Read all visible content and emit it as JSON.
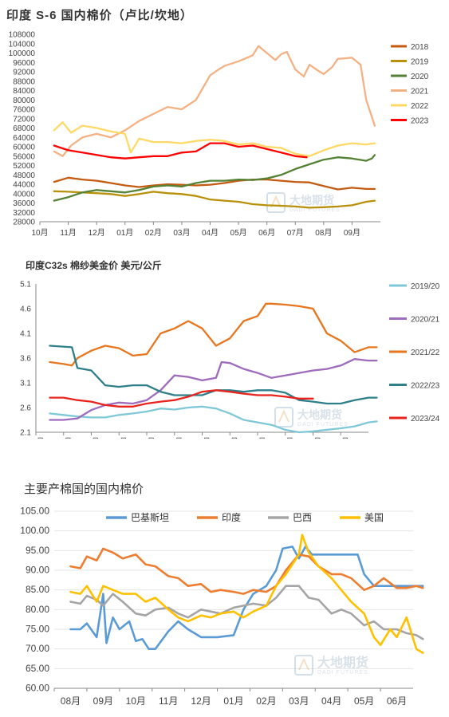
{
  "watermark": {
    "cn": "大地期货",
    "en": "DADI FUTURES"
  },
  "chart_data": [
    {
      "type": "line",
      "title": "印度 S-6 国内棉价（卢比/坎地）",
      "categories": [
        "10月",
        "11月",
        "12月",
        "01月",
        "02月",
        "03月",
        "04月",
        "05月",
        "06月",
        "07月",
        "08月",
        "09月"
      ],
      "ylim": [
        28000,
        108000
      ],
      "yticks": [
        28000,
        32000,
        36000,
        40000,
        44000,
        48000,
        52000,
        56000,
        60000,
        64000,
        68000,
        72000,
        76000,
        80000,
        84000,
        88000,
        92000,
        96000,
        100000,
        104000,
        108000
      ],
      "legend_position": "right",
      "series": [
        {
          "name": "2018",
          "color": "#c55a11",
          "x": [
            0,
            0.5,
            1,
            1.5,
            2,
            2.5,
            3,
            3.5,
            4,
            4.5,
            5,
            5.5,
            6,
            6.5,
            7,
            7.5,
            8,
            8.5,
            9,
            9.5,
            10,
            10.5,
            11,
            11.3
          ],
          "values": [
            45000,
            46800,
            46000,
            45500,
            44500,
            43500,
            42800,
            43500,
            44000,
            43800,
            43500,
            43800,
            44500,
            45500,
            46000,
            46000,
            45500,
            45000,
            44800,
            43200,
            41800,
            42500,
            42000,
            42000
          ]
        },
        {
          "name": "2019",
          "color": "#b8900a",
          "x": [
            0,
            0.5,
            1,
            1.5,
            2,
            2.5,
            3,
            3.5,
            4,
            4.5,
            5,
            5.5,
            6,
            6.5,
            7,
            7.5,
            8,
            8.5,
            9,
            9.5,
            10,
            10.5,
            11,
            11.3
          ],
          "values": [
            41000,
            40800,
            40500,
            40200,
            39800,
            39000,
            39800,
            40800,
            40200,
            39800,
            39000,
            37500,
            37000,
            36500,
            35500,
            35000,
            34800,
            34500,
            34000,
            34200,
            34500,
            35000,
            36500,
            37000
          ]
        },
        {
          "name": "2020",
          "color": "#548235",
          "x": [
            0,
            0.5,
            1,
            1.5,
            2,
            2.5,
            3,
            3.5,
            4,
            4.5,
            5,
            5.5,
            6,
            6.5,
            7,
            7.5,
            8,
            8.5,
            9,
            9.5,
            10,
            10.5,
            11,
            11.2,
            11.3
          ],
          "values": [
            37000,
            38500,
            40500,
            41500,
            41000,
            40500,
            41500,
            43000,
            43500,
            43000,
            44500,
            45500,
            45500,
            46000,
            45800,
            46500,
            48000,
            50500,
            52500,
            54500,
            55500,
            55000,
            54000,
            55000,
            56500
          ]
        },
        {
          "name": "2021",
          "color": "#f4b183",
          "x": [
            0,
            0.3,
            0.6,
            1,
            1.5,
            2,
            2.5,
            3,
            3.5,
            4,
            4.5,
            5,
            5.5,
            5.8,
            6,
            6.5,
            7,
            7.2,
            7.5,
            7.8,
            8,
            8.2,
            8.5,
            8.8,
            9,
            9.3,
            9.5,
            9.8,
            10,
            10.5,
            10.8,
            11,
            11.3
          ],
          "values": [
            58000,
            56000,
            60500,
            64000,
            65500,
            64000,
            67000,
            71000,
            74000,
            77000,
            76000,
            80000,
            90500,
            93000,
            94500,
            96500,
            99000,
            103000,
            100000,
            97000,
            99500,
            100500,
            93000,
            90000,
            95000,
            92500,
            91000,
            94000,
            97500,
            98000,
            95000,
            80000,
            69000
          ]
        },
        {
          "name": "2022",
          "color": "#ffd966",
          "x": [
            0,
            0.3,
            0.6,
            1,
            1.5,
            2,
            2.5,
            2.7,
            3,
            3.5,
            4,
            4.5,
            5,
            5.5,
            6,
            6.5,
            7,
            7.5,
            8,
            8.5,
            9,
            9.5,
            10,
            10.5,
            11,
            11.3
          ],
          "values": [
            67000,
            70500,
            66000,
            69000,
            68000,
            66500,
            65500,
            57500,
            63500,
            62000,
            62000,
            61500,
            62500,
            63000,
            62500,
            61000,
            61500,
            60000,
            59500,
            57000,
            56000,
            58500,
            60500,
            61500,
            61000,
            61500
          ]
        },
        {
          "name": "2023",
          "color": "#ff0000",
          "x": [
            0,
            0.5,
            1,
            1.5,
            2,
            2.5,
            3,
            3.5,
            4,
            4.5,
            5,
            5.5,
            6,
            6.5,
            7,
            7.5,
            8,
            8.5,
            8.9
          ],
          "values": [
            60500,
            58500,
            57500,
            56500,
            55500,
            55000,
            55500,
            56000,
            56000,
            57500,
            58000,
            61500,
            61500,
            60000,
            60500,
            59000,
            57500,
            56000,
            55500
          ]
        }
      ]
    },
    {
      "type": "line",
      "title": "印度C32s 棉纱美金价  美元/公斤",
      "categories": [
        "09月",
        "10月",
        "11月",
        "12月",
        "01月",
        "02月",
        "03月",
        "04月",
        "05月",
        "06月",
        "07月",
        "08月"
      ],
      "ylim": [
        2.1,
        5.1
      ],
      "yticks": [
        2.1,
        2.6,
        3.1,
        3.6,
        4.1,
        4.6,
        5.1
      ],
      "legend_position": "right",
      "series": [
        {
          "name": "2019/20",
          "color": "#7fc8d8",
          "x": [
            0,
            0.5,
            1,
            1.5,
            2,
            2.5,
            3,
            3.5,
            4,
            4.5,
            5,
            5.5,
            6,
            6.5,
            7,
            7.5,
            8,
            8.5,
            9,
            9.5,
            10,
            10.5,
            11,
            11.5,
            11.8
          ],
          "values": [
            2.48,
            2.45,
            2.42,
            2.4,
            2.4,
            2.45,
            2.48,
            2.52,
            2.58,
            2.56,
            2.6,
            2.62,
            2.58,
            2.48,
            2.35,
            2.3,
            2.25,
            2.15,
            2.1,
            2.12,
            2.15,
            2.18,
            2.22,
            2.3,
            2.32
          ]
        },
        {
          "name": "2020/21",
          "color": "#9e6bbd",
          "x": [
            0,
            0.5,
            1,
            1.5,
            2,
            2.5,
            3,
            3.5,
            4,
            4.5,
            5,
            5.5,
            6,
            6.2,
            6.5,
            7,
            7.5,
            8,
            8.5,
            9,
            9.5,
            10,
            10.5,
            11,
            11.5,
            11.8
          ],
          "values": [
            2.35,
            2.35,
            2.38,
            2.55,
            2.65,
            2.7,
            2.68,
            2.75,
            2.95,
            3.25,
            3.22,
            3.15,
            3.2,
            3.52,
            3.5,
            3.38,
            3.3,
            3.2,
            3.25,
            3.3,
            3.35,
            3.38,
            3.45,
            3.58,
            3.55,
            3.55
          ]
        },
        {
          "name": "2021/22",
          "color": "#e8761f",
          "x": [
            0,
            0.5,
            0.8,
            1,
            1.5,
            2,
            2.5,
            3,
            3.5,
            4,
            4.5,
            5,
            5.5,
            6,
            6.5,
            7,
            7.5,
            7.8,
            8,
            8.5,
            9,
            9.5,
            10,
            10.5,
            11,
            11.5,
            11.8
          ],
          "values": [
            3.52,
            3.48,
            3.45,
            3.6,
            3.75,
            3.85,
            3.8,
            3.65,
            3.68,
            4.1,
            4.2,
            4.35,
            4.2,
            3.85,
            4.0,
            4.35,
            4.45,
            4.7,
            4.7,
            4.68,
            4.65,
            4.6,
            4.1,
            3.95,
            3.72,
            3.82,
            3.82
          ]
        },
        {
          "name": "2022/23",
          "color": "#2e7f8a",
          "x": [
            0,
            0.8,
            1,
            1.5,
            2,
            2.5,
            3,
            3.5,
            4,
            4.5,
            5,
            5.5,
            6,
            6.5,
            7,
            7.5,
            8,
            8.5,
            9,
            9.5,
            10,
            10.5,
            11,
            11.5,
            11.8
          ],
          "values": [
            3.85,
            3.82,
            3.4,
            3.35,
            3.05,
            3.02,
            3.05,
            3.05,
            2.92,
            2.85,
            2.85,
            2.85,
            2.95,
            2.95,
            2.92,
            2.95,
            2.95,
            2.9,
            2.75,
            2.72,
            2.68,
            2.68,
            2.75,
            2.8,
            2.8
          ]
        },
        {
          "name": "2023/24",
          "color": "#e8231d",
          "x": [
            0,
            0.5,
            1,
            1.5,
            2,
            2.5,
            3,
            3.5,
            4,
            4.5,
            5,
            5.5,
            6,
            6.5,
            7,
            7.5,
            8,
            8.5,
            9,
            9.5
          ],
          "values": [
            2.8,
            2.8,
            2.75,
            2.72,
            2.65,
            2.62,
            2.62,
            2.68,
            2.72,
            2.75,
            2.82,
            2.92,
            2.95,
            2.92,
            2.88,
            2.85,
            2.85,
            2.82,
            2.78,
            2.78
          ]
        }
      ]
    },
    {
      "type": "line",
      "title": "主要产棉国的国内棉价",
      "categories": [
        "08月",
        "09月",
        "10月",
        "11月",
        "12月",
        "01月",
        "02月",
        "03月",
        "04月",
        "05月",
        "06月"
      ],
      "ylim": [
        60,
        105
      ],
      "yticks": [
        60,
        65,
        70,
        75,
        80,
        85,
        90,
        95,
        100,
        105
      ],
      "legend_position": "top",
      "series": [
        {
          "name": "巴基斯坦",
          "color": "#5b9bd5",
          "x": [
            0,
            0.3,
            0.5,
            0.8,
            1,
            1.1,
            1.3,
            1.5,
            1.8,
            2,
            2.2,
            2.4,
            2.6,
            3,
            3.3,
            3.6,
            4,
            4.5,
            5,
            5.3,
            5.6,
            6,
            6.3,
            6.5,
            6.8,
            7,
            7.2,
            7.4,
            7.6,
            7.8,
            8,
            8.5,
            8.8,
            9,
            9.3,
            9.5,
            10,
            10.5,
            10.8
          ],
          "values": [
            75,
            75,
            76.5,
            73,
            84,
            71.5,
            78,
            75,
            77,
            72,
            72.5,
            70,
            70,
            74.5,
            77,
            75,
            73,
            73,
            73.5,
            80,
            84,
            86,
            90,
            95.5,
            96,
            93,
            96,
            94,
            94,
            94,
            94,
            94,
            94,
            89,
            86,
            86,
            86,
            86,
            86
          ]
        },
        {
          "name": "印度",
          "color": "#ed7d31",
          "x": [
            0,
            0.3,
            0.5,
            0.8,
            1,
            1.3,
            1.6,
            2,
            2.3,
            2.6,
            3,
            3.3,
            3.6,
            4,
            4.3,
            4.6,
            5,
            5.3,
            5.6,
            6,
            6.3,
            6.6,
            7,
            7.3,
            7.6,
            8,
            8.3,
            8.6,
            9,
            9.3,
            9.6,
            10,
            10.3,
            10.6,
            10.8
          ],
          "values": [
            91,
            90.5,
            93.5,
            92.5,
            95.5,
            94.5,
            93,
            94,
            91.5,
            91,
            88.5,
            88,
            86,
            86.5,
            84.5,
            85,
            84.5,
            84,
            85,
            84.5,
            86,
            90,
            94,
            93.5,
            91,
            89,
            89,
            88,
            85,
            86,
            88,
            85.5,
            85.5,
            86,
            85.5
          ]
        },
        {
          "name": "巴西",
          "color": "#a5a5a5",
          "x": [
            0,
            0.3,
            0.5,
            0.8,
            1,
            1.3,
            1.6,
            2,
            2.3,
            2.6,
            3,
            3.3,
            3.6,
            4,
            4.3,
            4.6,
            5,
            5.3,
            5.6,
            6,
            6.3,
            6.6,
            7,
            7.3,
            7.6,
            8,
            8.3,
            8.6,
            9,
            9.3,
            9.6,
            10,
            10.3,
            10.6,
            10.8
          ],
          "values": [
            82,
            81.5,
            83.5,
            82.5,
            81,
            84,
            82,
            79,
            78.5,
            80,
            80.5,
            79,
            78,
            80,
            79.5,
            79,
            80.5,
            81,
            81.5,
            81,
            83,
            86,
            86,
            83,
            82.5,
            79,
            80,
            79,
            76,
            77,
            75,
            75,
            74,
            73.5,
            72.5
          ]
        },
        {
          "name": "美国",
          "color": "#ffc000",
          "x": [
            0,
            0.3,
            0.5,
            0.8,
            1,
            1.3,
            1.6,
            2,
            2.3,
            2.6,
            3,
            3.3,
            3.6,
            4,
            4.3,
            4.6,
            5,
            5.3,
            5.6,
            6,
            6.3,
            6.6,
            7,
            7.1,
            7.3,
            7.6,
            8,
            8.3,
            8.6,
            9,
            9.3,
            9.5,
            9.8,
            10,
            10.3,
            10.6,
            10.8
          ],
          "values": [
            84.5,
            84,
            86,
            82,
            86,
            85,
            84,
            84,
            82,
            83,
            80,
            78,
            77,
            78.5,
            78,
            79,
            79.5,
            78,
            79.5,
            81,
            86,
            89,
            94,
            99,
            94.5,
            91,
            88,
            85,
            82,
            79,
            73,
            71,
            75,
            73,
            78,
            70,
            69
          ]
        }
      ]
    }
  ]
}
